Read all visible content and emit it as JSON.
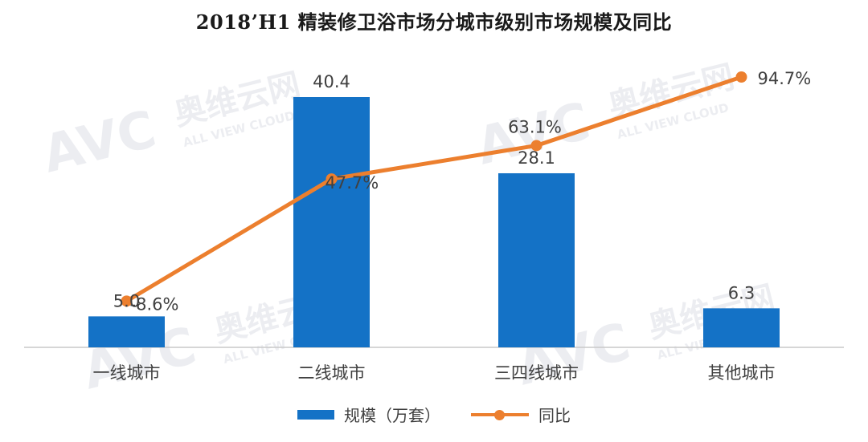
{
  "title": "2018’H1 精装修卫浴市场分城市级别市场规模及同比",
  "watermark": {
    "logo_text": "AVC",
    "cn_text": "奥维云网",
    "en_text": "ALL VIEW CLOUD"
  },
  "chart_data": {
    "type": "bar",
    "title": "2018’H1 精装修卫浴市场分城市级别市场规模及同比",
    "categories": [
      "一线城市",
      "二线城市",
      "三四线城市",
      "其他城市"
    ],
    "series": [
      {
        "name": "规模（万套）",
        "type": "bar",
        "values": [
          5.0,
          40.4,
          28.1,
          6.3
        ],
        "labels": [
          "5.0",
          "40.4",
          "28.1",
          "6.3"
        ],
        "color": "#1472c6",
        "axis": "left"
      },
      {
        "name": "同比",
        "type": "line",
        "values": [
          -8.6,
          47.7,
          63.1,
          94.7
        ],
        "labels": [
          "-8.6%",
          "47.7%",
          "63.1%",
          "94.7%"
        ],
        "color": "#ec7f2e",
        "axis": "right"
      }
    ],
    "xlabel": "",
    "ylabel": "",
    "ylim_bar": [
      0,
      45
    ],
    "ylim_line": [
      -20,
      110
    ],
    "grid": false,
    "legend": "bottom"
  }
}
